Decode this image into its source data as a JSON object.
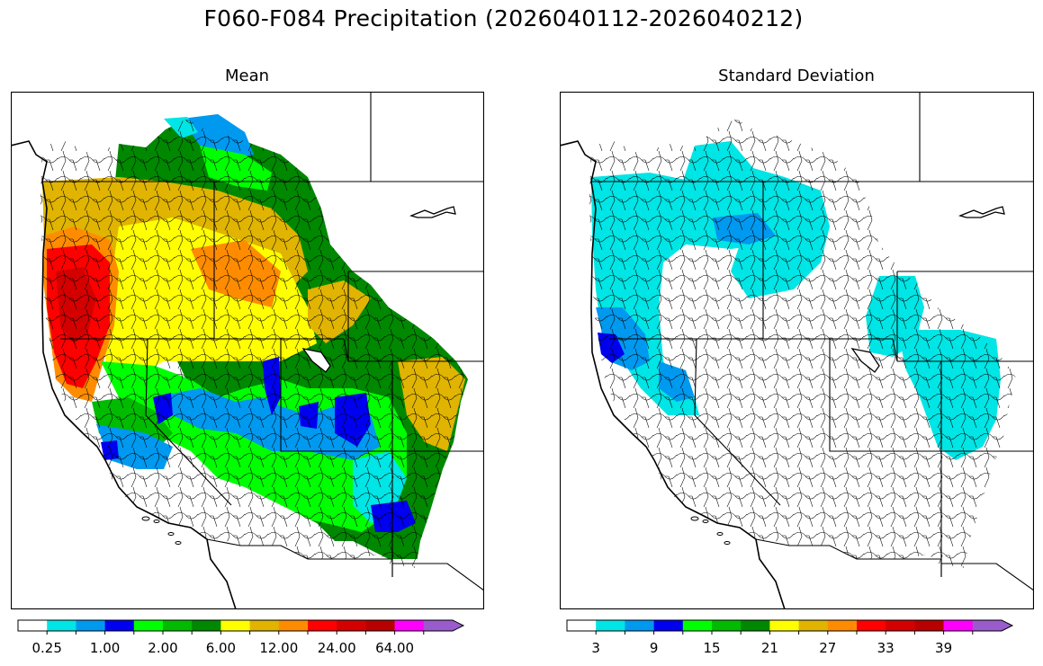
{
  "figure_title": "F060-F084 Precipitation (2026040112-2026040212)",
  "panels": [
    {
      "title": "Mean",
      "colorbar": {
        "labels": [
          "0.25",
          "1.00",
          "2.00",
          "6.00",
          "12.00",
          "24.00",
          "64.00"
        ],
        "colors": [
          "#ffffff",
          "#00e5e5",
          "#0099f0",
          "#0000f0",
          "#00ff00",
          "#00bb00",
          "#008800",
          "#ffff00",
          "#e0b400",
          "#ff8c00",
          "#ff0000",
          "#d40000",
          "#b80000",
          "#ff00ff",
          "#9a5ccc"
        ]
      }
    },
    {
      "title": "Standard Deviation",
      "colorbar": {
        "labels": [
          "3",
          "9",
          "15",
          "21",
          "27",
          "33",
          "39"
        ],
        "colors": [
          "#ffffff",
          "#00e5e5",
          "#0099f0",
          "#0000f0",
          "#00ff00",
          "#00bb00",
          "#008800",
          "#ffff00",
          "#e0b400",
          "#ff8c00",
          "#ff0000",
          "#d40000",
          "#b80000",
          "#ff00ff",
          "#9a5ccc"
        ]
      }
    }
  ]
}
